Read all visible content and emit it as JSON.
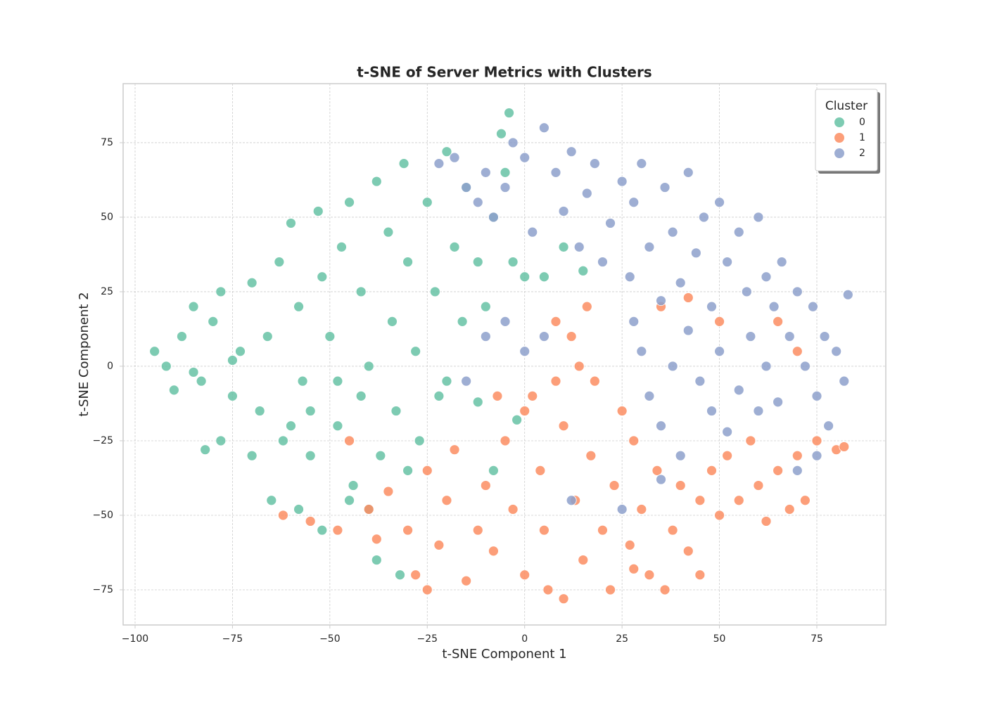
{
  "chart_data": {
    "type": "scatter",
    "title": "t-SNE of Server Metrics with Clusters",
    "x_label": "t-SNE Component 1",
    "y_label": "t-SNE Component 2",
    "legend_title": "Cluster",
    "legend": "upper right",
    "grid": true,
    "xlim": [
      -103.07,
      92.7
    ],
    "ylim": [
      -86.8,
      94.8
    ],
    "xticks": [
      {
        "value": -100,
        "label": "−100"
      },
      {
        "value": -75,
        "label": "−75"
      },
      {
        "value": -50,
        "label": "−50"
      },
      {
        "value": -25,
        "label": "−25"
      },
      0,
      25,
      50,
      75
    ],
    "yticks": [
      {
        "value": -75,
        "label": "−75"
      },
      {
        "value": -50,
        "label": "−50"
      },
      {
        "value": -25,
        "label": "−25"
      },
      0,
      25,
      50,
      75
    ],
    "series": [
      {
        "name": "0",
        "color": "#66c2a5",
        "x": [
          -95,
          -92,
          -88,
          -85,
          -83,
          -80,
          -78,
          -75,
          -73,
          -70,
          -68,
          -66,
          -63,
          -62,
          -60,
          -58,
          -57,
          -55,
          -53,
          -52,
          -50,
          -48,
          -47,
          -45,
          -44,
          -42,
          -40,
          -38,
          -37,
          -35,
          -34,
          -33,
          -31,
          -30,
          -28,
          -27,
          -25,
          -23,
          -22,
          -20,
          -18,
          -16,
          -15,
          -12,
          -10,
          -8,
          -6,
          -4,
          -3,
          0,
          -5,
          -90,
          -78,
          -70,
          -65,
          -58,
          -52,
          -45,
          -40,
          -38,
          -32,
          -85,
          -60,
          -48,
          -30,
          -20,
          -12,
          -8,
          -2,
          5,
          10,
          15,
          -82,
          -55,
          -42,
          -75
        ],
        "y": [
          5,
          0,
          10,
          20,
          -5,
          15,
          25,
          -10,
          5,
          28,
          -15,
          10,
          35,
          -25,
          48,
          20,
          -5,
          -30,
          52,
          30,
          10,
          -20,
          40,
          55,
          -40,
          25,
          0,
          62,
          -30,
          45,
          15,
          -15,
          68,
          35,
          5,
          -25,
          55,
          25,
          -10,
          72,
          40,
          15,
          60,
          35,
          20,
          50,
          78,
          85,
          35,
          30,
          65,
          -8,
          -25,
          -30,
          -45,
          -48,
          -55,
          -45,
          -48,
          -65,
          -70,
          -2,
          -20,
          -5,
          -35,
          -5,
          -12,
          -35,
          -18,
          30,
          40,
          32,
          -28,
          -15,
          -10,
          2
        ]
      },
      {
        "name": "1",
        "color": "#fc8d62",
        "x": [
          -62,
          -55,
          -48,
          -45,
          -40,
          -35,
          -30,
          -28,
          -25,
          -22,
          -20,
          -18,
          -15,
          -12,
          -10,
          -8,
          -5,
          -3,
          0,
          2,
          4,
          5,
          6,
          8,
          10,
          12,
          13,
          15,
          16,
          17,
          18,
          20,
          22,
          23,
          25,
          27,
          28,
          30,
          32,
          34,
          36,
          38,
          40,
          42,
          45,
          48,
          50,
          52,
          55,
          58,
          60,
          62,
          65,
          68,
          70,
          72,
          75,
          80,
          82,
          8,
          14,
          0,
          -7,
          35,
          42,
          50,
          65,
          70,
          -38,
          -25,
          10,
          28,
          45
        ],
        "y": [
          -50,
          -52,
          -55,
          -25,
          -48,
          -42,
          -55,
          -70,
          -35,
          -60,
          -45,
          -28,
          -72,
          -55,
          -40,
          -62,
          -25,
          -48,
          -70,
          -10,
          -35,
          -55,
          -75,
          -5,
          -20,
          10,
          -45,
          -65,
          20,
          -30,
          -5,
          -55,
          -75,
          -40,
          -15,
          -60,
          -25,
          -48,
          -70,
          -35,
          -75,
          -55,
          -40,
          -62,
          -45,
          -35,
          -50,
          -30,
          -45,
          -25,
          -40,
          -52,
          -35,
          -48,
          -30,
          -45,
          -25,
          -28,
          -27,
          15,
          0,
          -15,
          -10,
          20,
          23,
          15,
          15,
          5,
          -58,
          -75,
          -78,
          -68,
          -70
        ]
      },
      {
        "name": "2",
        "color": "#8da0cb",
        "x": [
          -22,
          -18,
          -15,
          -12,
          -10,
          -8,
          -5,
          -3,
          0,
          2,
          5,
          8,
          10,
          12,
          14,
          16,
          18,
          20,
          22,
          25,
          27,
          28,
          30,
          32,
          35,
          36,
          38,
          40,
          42,
          44,
          46,
          48,
          50,
          52,
          55,
          57,
          60,
          62,
          64,
          66,
          68,
          70,
          72,
          74,
          75,
          77,
          78,
          80,
          82,
          83,
          30,
          32,
          35,
          38,
          40,
          42,
          45,
          48,
          50,
          52,
          55,
          58,
          60,
          62,
          65,
          70,
          75,
          28,
          -10,
          -15,
          -5,
          0,
          5,
          25,
          12,
          35
        ],
        "y": [
          68,
          70,
          60,
          55,
          65,
          50,
          60,
          75,
          70,
          45,
          80,
          65,
          52,
          72,
          40,
          58,
          68,
          35,
          48,
          62,
          30,
          55,
          68,
          40,
          22,
          60,
          45,
          28,
          65,
          38,
          50,
          20,
          55,
          35,
          45,
          25,
          50,
          30,
          20,
          35,
          10,
          25,
          0,
          20,
          -10,
          10,
          -20,
          5,
          -5,
          24,
          5,
          -10,
          -20,
          0,
          -30,
          12,
          -5,
          -15,
          5,
          -22,
          -8,
          10,
          -15,
          0,
          -12,
          -35,
          -30,
          15,
          10,
          -5,
          15,
          5,
          10,
          -48,
          -45,
          -38
        ]
      }
    ]
  }
}
